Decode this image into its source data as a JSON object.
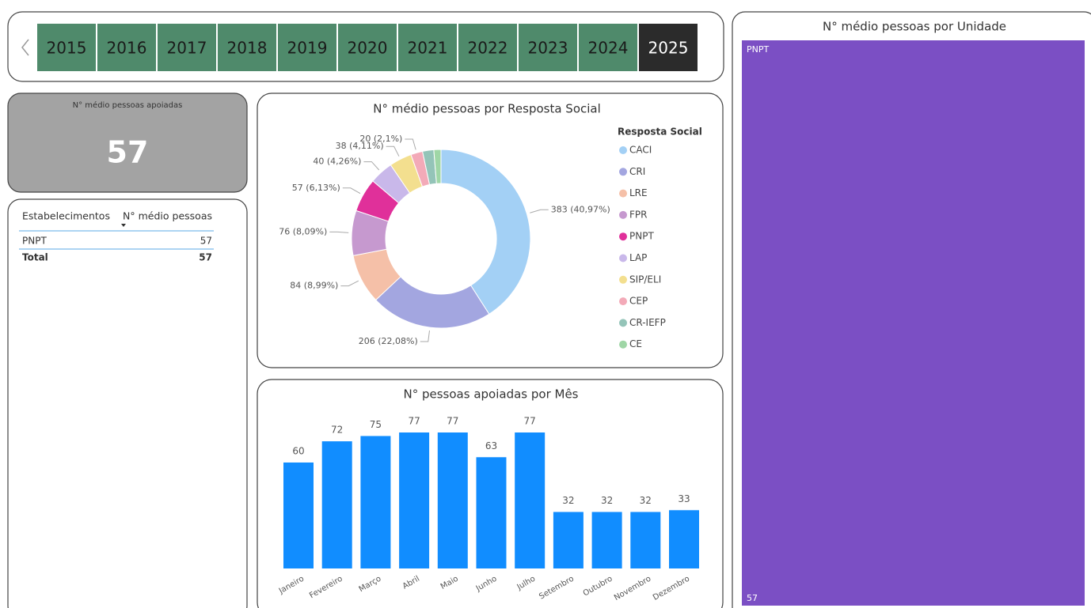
{
  "year_slicer": {
    "years": [
      "2015",
      "2016",
      "2017",
      "2018",
      "2019",
      "2020",
      "2021",
      "2022",
      "2023",
      "2024",
      "2025"
    ],
    "selected": "2025",
    "color": "#4f8a6b",
    "selected_color": "#2b2b2b"
  },
  "kpi": {
    "title": "N° médio pessoas apoiadas",
    "value": 57
  },
  "table": {
    "columns": [
      "Estabelecimentos",
      "N° médio pessoas"
    ],
    "rows": [
      [
        "PNPT",
        57
      ]
    ],
    "total": [
      "Total",
      57
    ]
  },
  "chart_data": [
    {
      "type": "donut",
      "title": "N° médio pessoas por Resposta Social",
      "legend_title": "Resposta Social",
      "categories": [
        "CACI",
        "CRI",
        "LRE",
        "FPR",
        "PNPT",
        "LAP",
        "SIP/ELI",
        "CEP",
        "CR-IEFP",
        "CE"
      ],
      "values": [
        383,
        206,
        84,
        76,
        57,
        40,
        38,
        20,
        19,
        12
      ],
      "value_labels": [
        "383 (40,97%)",
        "206 (22,08%)",
        "84 (8,99%)",
        "76 (8,09%)",
        "57 (6,13%)",
        "40 (4,26%)",
        "38 (4,11%)",
        "20 (2,1%)",
        null,
        null
      ],
      "colors": [
        "#a3d0f5",
        "#a3a6e0",
        "#f5c0a8",
        "#c699cf",
        "#e0309a",
        "#c9b8ea",
        "#f3df8f",
        "#f3aab8",
        "#94c4b8",
        "#9fd6a6"
      ]
    },
    {
      "type": "bar",
      "title": "N° pessoas apoiadas por Mês",
      "categories": [
        "Janeiro",
        "Fevereiro",
        "Março",
        "Abril",
        "Maio",
        "Junho",
        "Julho",
        "Setembro",
        "Outubro",
        "Novembro",
        "Dezembro"
      ],
      "values": [
        60,
        72,
        75,
        77,
        77,
        63,
        77,
        32,
        32,
        32,
        33
      ],
      "color": "#118dff"
    },
    {
      "type": "treemap",
      "title": "N° médio pessoas por Unidade",
      "categories": [
        "PNPT"
      ],
      "values": [
        57
      ],
      "color": "#7b4fc4"
    }
  ]
}
